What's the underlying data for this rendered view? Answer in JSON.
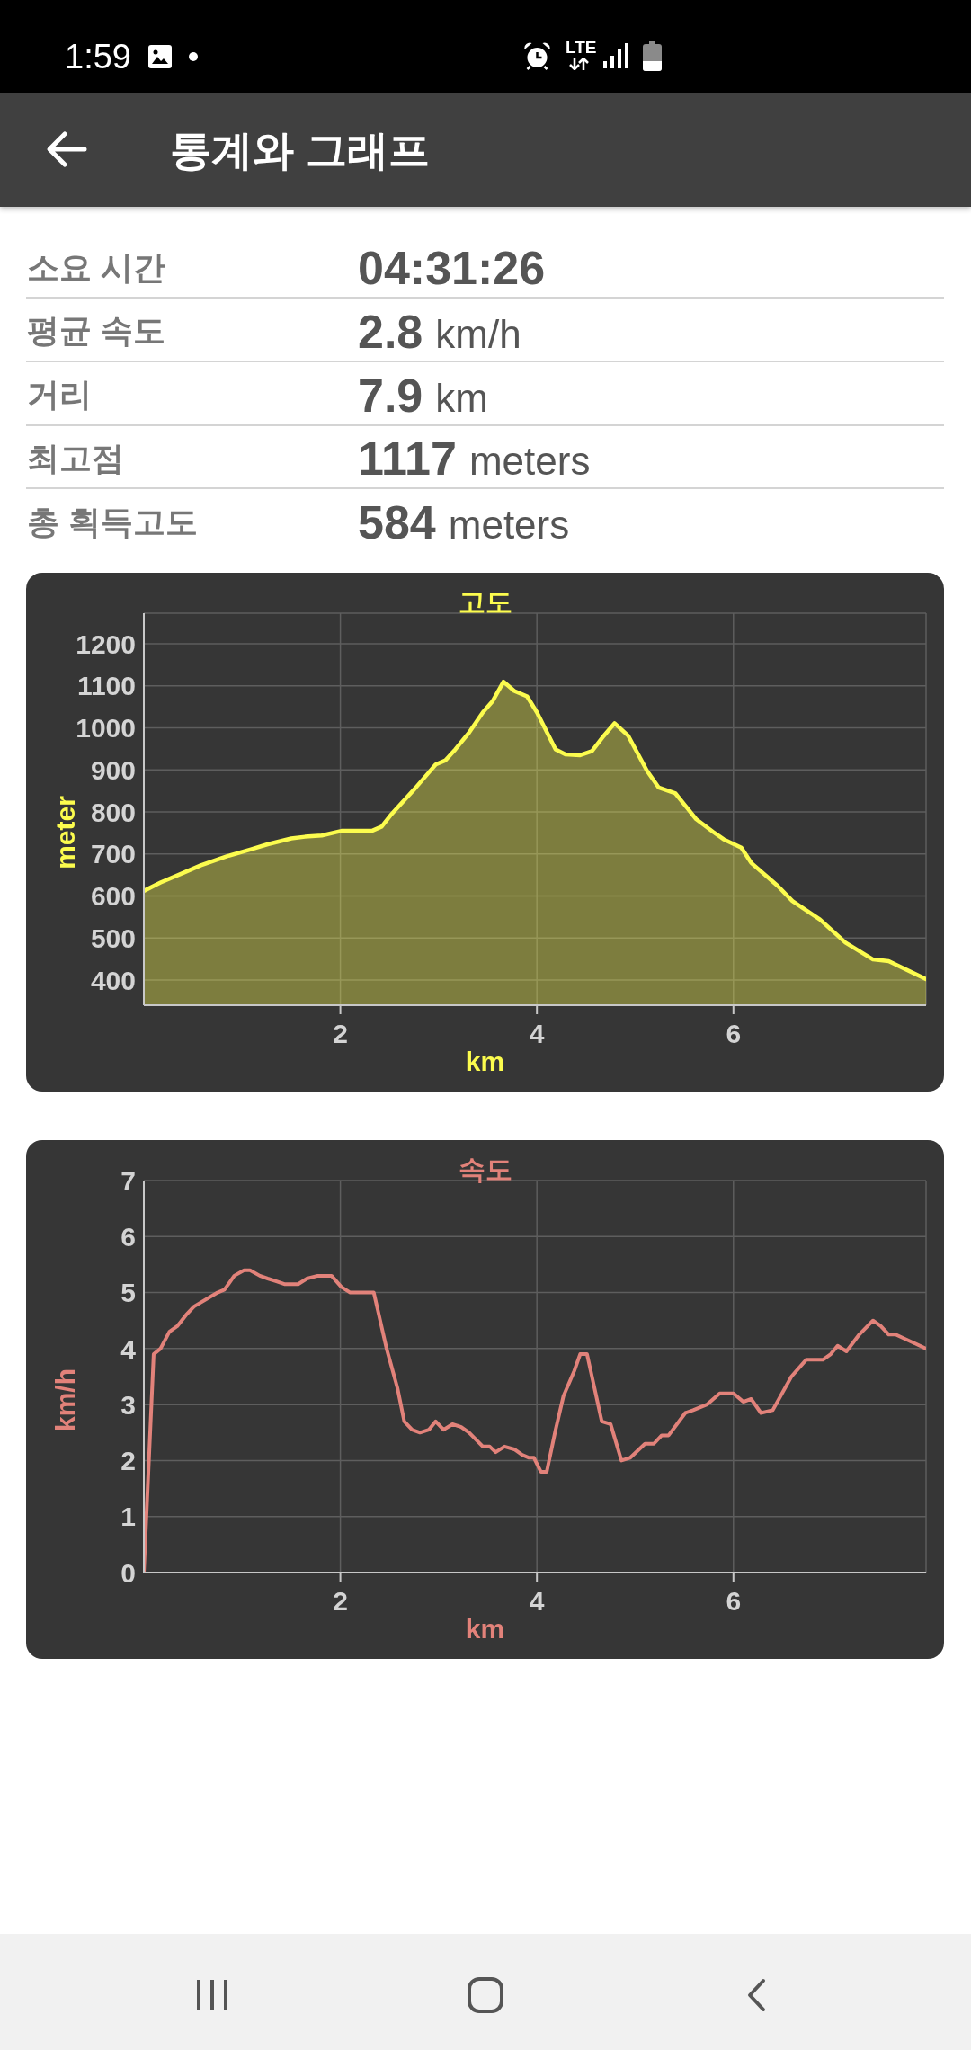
{
  "chart_data": [
    {
      "type": "other",
      "title": "통계와 그래프",
      "annotations": [
        "1:59",
        "LTE",
        "소요 시간",
        "04:31:26",
        "평균 속도",
        "2.8 km/h",
        "거리",
        "7.9 km",
        "최고점",
        "1117 meters",
        "총 획득고도",
        "584 meters"
      ]
    },
    {
      "type": "area",
      "title": "고도",
      "xlabel": "km",
      "ylabel": "meter",
      "x": [
        0,
        0.17,
        0.41,
        0.58,
        0.85,
        1.09,
        1.26,
        1.5,
        1.64,
        1.81,
        2.01,
        2.32,
        2.42,
        2.51,
        2.76,
        2.9,
        2.97,
        3.07,
        3.17,
        3.31,
        3.45,
        3.55,
        3.66,
        3.77,
        3.9,
        4.0,
        4.19,
        4.29,
        4.44,
        4.56,
        4.68,
        4.79,
        4.93,
        5.12,
        5.24,
        5.41,
        5.62,
        5.79,
        5.9,
        6.08,
        6.18,
        6.45,
        6.6,
        6.88,
        7.14,
        7.42,
        7.58,
        7.96
      ],
      "series": [
        {
          "color": "#fcfc4e",
          "values": [
            612,
            632,
            656,
            673,
            695,
            711,
            723,
            737,
            741,
            744,
            755,
            755,
            765,
            792,
            856,
            894,
            913,
            923,
            949,
            989,
            1037,
            1064,
            1110,
            1088,
            1075,
            1037,
            949,
            937,
            935,
            945,
            981,
            1011,
            981,
            898,
            858,
            844,
            783,
            753,
            735,
            715,
            679,
            624,
            588,
            544,
            489,
            449,
            445,
            402
          ]
        }
      ],
      "xlim": [
        0,
        7.96
      ],
      "xticks": [
        2,
        4,
        6
      ],
      "ylim": [
        340,
        1273
      ],
      "yticks": [
        400,
        500,
        600,
        700,
        800,
        900,
        1000,
        1100,
        1200
      ],
      "grid": true
    },
    {
      "type": "line",
      "title": "속도",
      "xlabel": "km",
      "ylabel": "km/h",
      "x": [
        0,
        0.1,
        0.17,
        0.26,
        0.34,
        0.43,
        0.51,
        0.75,
        0.82,
        0.92,
        1.02,
        1.08,
        1.18,
        1.26,
        1.35,
        1.43,
        1.57,
        1.66,
        1.77,
        1.91,
        2.01,
        2.1,
        2.34,
        2.47,
        2.58,
        2.65,
        2.73,
        2.81,
        2.9,
        2.97,
        3.05,
        3.14,
        3.23,
        3.31,
        3.45,
        3.52,
        3.58,
        3.67,
        3.77,
        3.85,
        3.92,
        3.97,
        4.04,
        4.1,
        4.19,
        4.27,
        4.38,
        4.44,
        4.51,
        4.66,
        4.75,
        4.86,
        4.95,
        5.1,
        5.19,
        5.27,
        5.34,
        5.51,
        5.59,
        5.73,
        5.86,
        6.0,
        6.1,
        6.18,
        6.28,
        6.4,
        6.59,
        6.74,
        6.91,
        6.99,
        7.06,
        7.15,
        7.28,
        7.42,
        7.5,
        7.58,
        7.65,
        7.96
      ],
      "series": [
        {
          "color": "#e2827a",
          "values": [
            0,
            3.9,
            4.0,
            4.3,
            4.4,
            4.6,
            4.75,
            5.0,
            5.05,
            5.3,
            5.4,
            5.4,
            5.3,
            5.25,
            5.2,
            5.15,
            5.15,
            5.25,
            5.3,
            5.3,
            5.1,
            5.0,
            5.0,
            4.0,
            3.3,
            2.7,
            2.55,
            2.5,
            2.55,
            2.7,
            2.55,
            2.65,
            2.6,
            2.5,
            2.25,
            2.25,
            2.15,
            2.25,
            2.2,
            2.1,
            2.05,
            2.05,
            1.8,
            1.8,
            2.55,
            3.15,
            3.6,
            3.9,
            3.9,
            2.7,
            2.65,
            2.0,
            2.05,
            2.3,
            2.3,
            2.45,
            2.45,
            2.85,
            2.9,
            3.0,
            3.2,
            3.2,
            3.05,
            3.1,
            2.85,
            2.9,
            3.5,
            3.8,
            3.8,
            3.9,
            4.05,
            3.95,
            4.25,
            4.5,
            4.4,
            4.25,
            4.25,
            4.0
          ]
        }
      ],
      "xlim": [
        0,
        7.96
      ],
      "xticks": [
        2,
        4,
        6
      ],
      "ylim": [
        0,
        7
      ],
      "yticks": [
        0,
        1,
        2,
        3,
        4,
        5,
        6,
        7
      ],
      "grid": true
    }
  ]
}
